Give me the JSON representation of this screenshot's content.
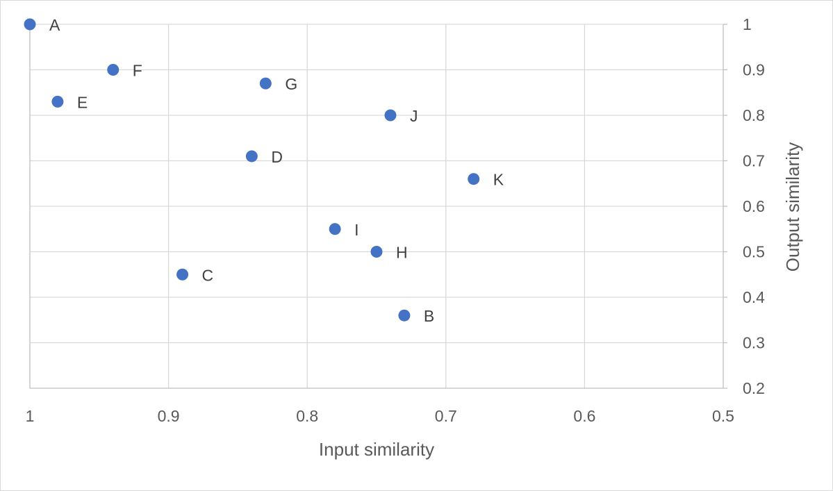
{
  "chart_data": {
    "type": "scatter",
    "title": "",
    "xlabel": "Input similarity",
    "ylabel": "Output similarity",
    "xlim": [
      1,
      0.5
    ],
    "ylim": [
      0.2,
      1
    ],
    "x_reversed": true,
    "y_axis_side": "right",
    "grid": true,
    "legend": "none",
    "x_ticks": [
      "1",
      "0.9",
      "0.8",
      "0.7",
      "0.6",
      "0.5"
    ],
    "y_ticks": [
      "1",
      "0.9",
      "0.8",
      "0.7",
      "0.6",
      "0.5",
      "0.4",
      "0.3",
      "0.2"
    ],
    "marker_color": "#4472C4",
    "points": [
      {
        "label": "A",
        "x": 1.0,
        "y": 1.0
      },
      {
        "label": "B",
        "x": 0.73,
        "y": 0.36
      },
      {
        "label": "C",
        "x": 0.89,
        "y": 0.45
      },
      {
        "label": "D",
        "x": 0.84,
        "y": 0.71
      },
      {
        "label": "E",
        "x": 0.98,
        "y": 0.83
      },
      {
        "label": "F",
        "x": 0.94,
        "y": 0.9
      },
      {
        "label": "G",
        "x": 0.83,
        "y": 0.87
      },
      {
        "label": "H",
        "x": 0.75,
        "y": 0.5
      },
      {
        "label": "I",
        "x": 0.78,
        "y": 0.55
      },
      {
        "label": "J",
        "x": 0.74,
        "y": 0.8
      },
      {
        "label": "K",
        "x": 0.68,
        "y": 0.66
      }
    ]
  }
}
